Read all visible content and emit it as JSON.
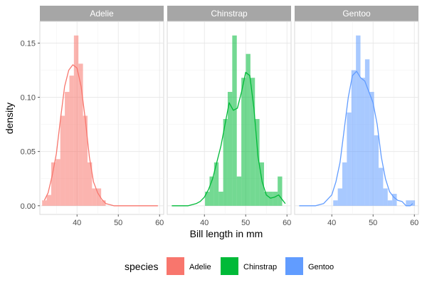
{
  "chart_data": {
    "type": "histogram-density-facet",
    "xlabel": "Bill length in mm",
    "ylabel": "density",
    "xlim": [
      31,
      61
    ],
    "ylim": [
      -0.008,
      0.17
    ],
    "x_ticks": [
      40,
      50,
      60
    ],
    "x_tick_labels": [
      "40",
      "50",
      "60"
    ],
    "y_ticks": [
      0.0,
      0.05,
      0.1,
      0.15
    ],
    "y_tick_labels": [
      "0.00",
      "0.05",
      "0.10",
      "0.15"
    ],
    "bin_width": 1.1,
    "grid": true,
    "legend": {
      "title": "species",
      "position": "bottom"
    },
    "facets": [
      {
        "name": "Adelie",
        "color": "#F8766D",
        "bins": [
          {
            "x": 32.1,
            "density": 0.005
          },
          {
            "x": 33.2,
            "density": 0.01
          },
          {
            "x": 34.3,
            "density": 0.04
          },
          {
            "x": 35.4,
            "density": 0.043
          },
          {
            "x": 36.5,
            "density": 0.083
          },
          {
            "x": 37.6,
            "density": 0.105
          },
          {
            "x": 38.7,
            "density": 0.12
          },
          {
            "x": 39.8,
            "density": 0.157
          },
          {
            "x": 40.9,
            "density": 0.131
          },
          {
            "x": 42.0,
            "density": 0.083
          },
          {
            "x": 43.1,
            "density": 0.04
          },
          {
            "x": 44.2,
            "density": 0.016
          },
          {
            "x": 45.3,
            "density": 0.016
          },
          {
            "x": 46.4,
            "density": 0.005
          }
        ],
        "density_curve": [
          {
            "x": 32.1,
            "y": 0.005
          },
          {
            "x": 33.0,
            "y": 0.012
          },
          {
            "x": 34.0,
            "y": 0.028
          },
          {
            "x": 35.0,
            "y": 0.048
          },
          {
            "x": 36.0,
            "y": 0.08
          },
          {
            "x": 37.0,
            "y": 0.11
          },
          {
            "x": 38.0,
            "y": 0.125
          },
          {
            "x": 39.0,
            "y": 0.13
          },
          {
            "x": 40.0,
            "y": 0.127
          },
          {
            "x": 41.0,
            "y": 0.11
          },
          {
            "x": 42.0,
            "y": 0.08
          },
          {
            "x": 43.0,
            "y": 0.045
          },
          {
            "x": 44.0,
            "y": 0.022
          },
          {
            "x": 45.0,
            "y": 0.012
          },
          {
            "x": 46.0,
            "y": 0.006
          },
          {
            "x": 47.0,
            "y": 0.002
          },
          {
            "x": 49.0,
            "y": 0.0
          },
          {
            "x": 55.0,
            "y": 0.0
          },
          {
            "x": 59.6,
            "y": 0.0
          }
        ]
      },
      {
        "name": "Chinstrap",
        "color": "#00BA38",
        "bins": [
          {
            "x": 40.7,
            "density": 0.013
          },
          {
            "x": 41.8,
            "density": 0.027
          },
          {
            "x": 42.9,
            "density": 0.04
          },
          {
            "x": 44.0,
            "density": 0.013
          },
          {
            "x": 45.1,
            "density": 0.08
          },
          {
            "x": 46.2,
            "density": 0.105
          },
          {
            "x": 47.3,
            "density": 0.157
          },
          {
            "x": 48.4,
            "density": 0.027
          },
          {
            "x": 49.5,
            "density": 0.118
          },
          {
            "x": 50.6,
            "density": 0.14
          },
          {
            "x": 51.7,
            "density": 0.118
          },
          {
            "x": 52.8,
            "density": 0.08
          },
          {
            "x": 53.9,
            "density": 0.04
          },
          {
            "x": 55.0,
            "density": 0.013
          },
          {
            "x": 56.1,
            "density": 0.013
          },
          {
            "x": 57.2,
            "density": 0.013
          },
          {
            "x": 58.3,
            "density": 0.027
          }
        ],
        "density_curve": [
          {
            "x": 32.1,
            "y": 0.0
          },
          {
            "x": 36.0,
            "y": 0.0
          },
          {
            "x": 38.0,
            "y": 0.002
          },
          {
            "x": 39.0,
            "y": 0.004
          },
          {
            "x": 40.0,
            "y": 0.008
          },
          {
            "x": 41.0,
            "y": 0.015
          },
          {
            "x": 42.0,
            "y": 0.025
          },
          {
            "x": 43.0,
            "y": 0.04
          },
          {
            "x": 44.0,
            "y": 0.055
          },
          {
            "x": 45.0,
            "y": 0.075
          },
          {
            "x": 46.0,
            "y": 0.095
          },
          {
            "x": 47.0,
            "y": 0.088
          },
          {
            "x": 48.0,
            "y": 0.09
          },
          {
            "x": 49.0,
            "y": 0.105
          },
          {
            "x": 50.0,
            "y": 0.123
          },
          {
            "x": 51.0,
            "y": 0.12
          },
          {
            "x": 52.0,
            "y": 0.09
          },
          {
            "x": 53.0,
            "y": 0.045
          },
          {
            "x": 54.0,
            "y": 0.022
          },
          {
            "x": 55.0,
            "y": 0.01
          },
          {
            "x": 56.0,
            "y": 0.007
          },
          {
            "x": 57.0,
            "y": 0.008
          },
          {
            "x": 58.0,
            "y": 0.01
          },
          {
            "x": 58.8,
            "y": 0.006
          },
          {
            "x": 59.6,
            "y": 0.002
          }
        ]
      },
      {
        "name": "Gentoo",
        "color": "#619CFF",
        "bins": [
          {
            "x": 40.9,
            "density": 0.005
          },
          {
            "x": 42.0,
            "density": 0.016
          },
          {
            "x": 43.1,
            "density": 0.04
          },
          {
            "x": 44.2,
            "density": 0.086
          },
          {
            "x": 45.3,
            "density": 0.125
          },
          {
            "x": 46.4,
            "density": 0.157
          },
          {
            "x": 47.5,
            "density": 0.118
          },
          {
            "x": 48.6,
            "density": 0.135
          },
          {
            "x": 49.7,
            "density": 0.105
          },
          {
            "x": 50.8,
            "density": 0.065
          },
          {
            "x": 51.9,
            "density": 0.035
          },
          {
            "x": 53.0,
            "density": 0.016
          },
          {
            "x": 54.1,
            "density": 0.005
          },
          {
            "x": 55.2,
            "density": 0.011
          },
          {
            "x": 58.5,
            "density": 0.005
          },
          {
            "x": 59.6,
            "density": 0.005
          }
        ],
        "density_curve": [
          {
            "x": 32.1,
            "y": 0.0
          },
          {
            "x": 36.0,
            "y": 0.0
          },
          {
            "x": 38.0,
            "y": 0.002
          },
          {
            "x": 40.0,
            "y": 0.01
          },
          {
            "x": 41.0,
            "y": 0.022
          },
          {
            "x": 42.0,
            "y": 0.04
          },
          {
            "x": 43.0,
            "y": 0.07
          },
          {
            "x": 44.0,
            "y": 0.1
          },
          {
            "x": 45.0,
            "y": 0.12
          },
          {
            "x": 46.0,
            "y": 0.124
          },
          {
            "x": 47.0,
            "y": 0.118
          },
          {
            "x": 48.0,
            "y": 0.115
          },
          {
            "x": 49.0,
            "y": 0.105
          },
          {
            "x": 50.0,
            "y": 0.095
          },
          {
            "x": 51.0,
            "y": 0.075
          },
          {
            "x": 52.0,
            "y": 0.045
          },
          {
            "x": 53.0,
            "y": 0.025
          },
          {
            "x": 54.0,
            "y": 0.013
          },
          {
            "x": 55.0,
            "y": 0.008
          },
          {
            "x": 56.0,
            "y": 0.005
          },
          {
            "x": 57.0,
            "y": 0.004
          },
          {
            "x": 58.0,
            "y": 0.0
          },
          {
            "x": 59.0,
            "y": 0.0
          },
          {
            "x": 59.6,
            "y": 0.002
          }
        ]
      }
    ]
  }
}
